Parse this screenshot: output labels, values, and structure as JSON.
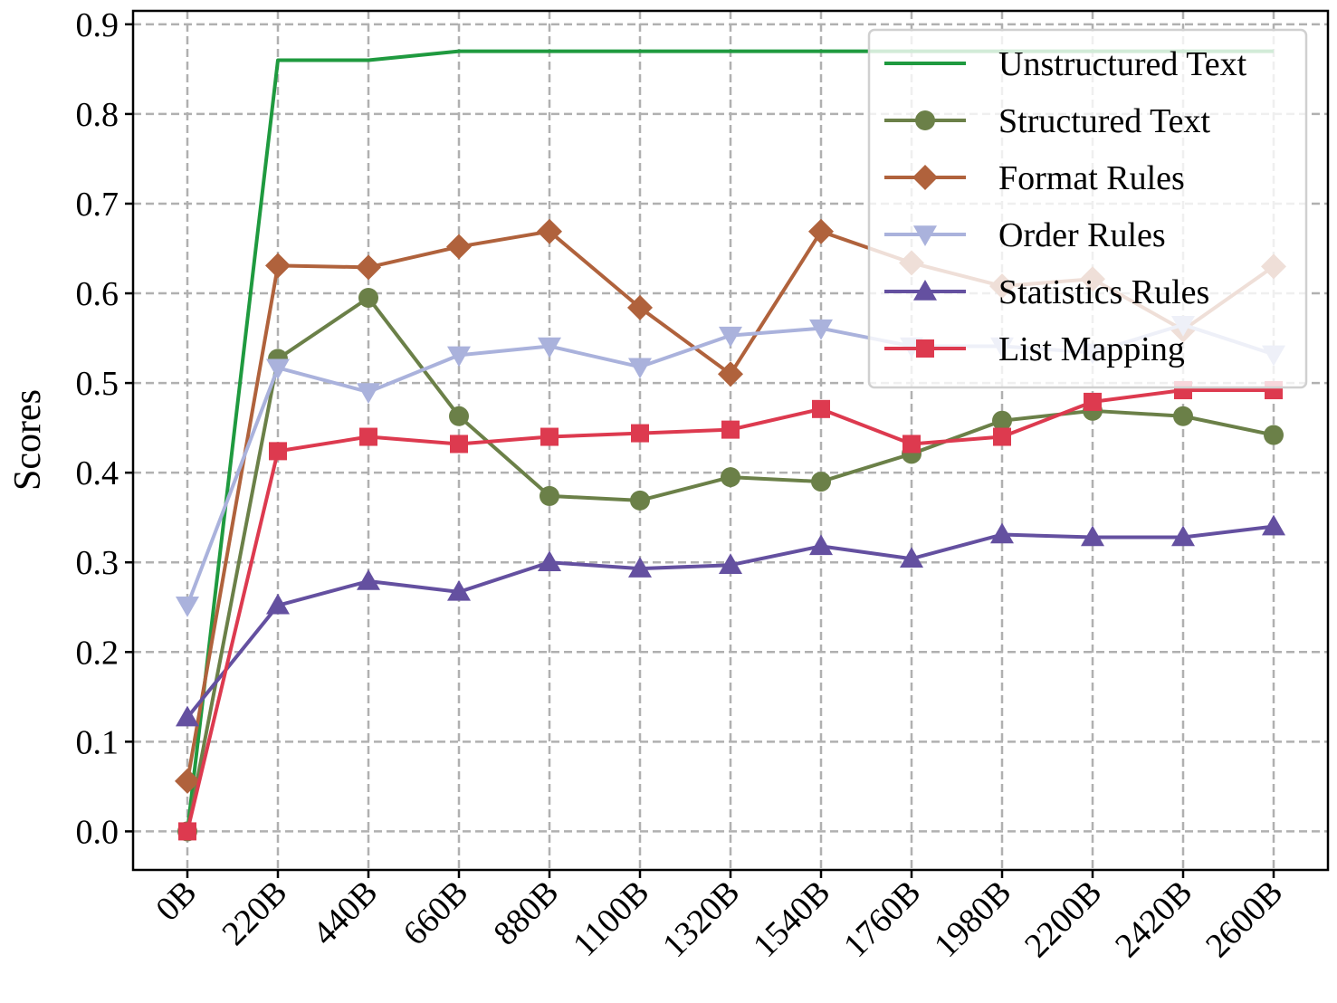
{
  "chart_data": {
    "type": "line",
    "title": "",
    "xlabel": "",
    "ylabel": "Scores",
    "categories": [
      "0B",
      "220B",
      "440B",
      "660B",
      "880B",
      "1100B",
      "1320B",
      "1540B",
      "1760B",
      "1980B",
      "2200B",
      "2420B",
      "2600B"
    ],
    "ylim": [
      -0.043,
      0.915
    ],
    "yticks": [
      0.0,
      0.1,
      0.2,
      0.3,
      0.4,
      0.5,
      0.6,
      0.7,
      0.8,
      0.9
    ],
    "ytick_labels": [
      "0.0",
      "0.1",
      "0.2",
      "0.3",
      "0.4",
      "0.5",
      "0.6",
      "0.7",
      "0.8",
      "0.9"
    ],
    "grid": true,
    "legend_position": "top-right",
    "series": [
      {
        "name": "Unstructured Text",
        "color": "#1f9a3f",
        "marker": "none",
        "values": [
          0.0,
          0.86,
          0.86,
          0.87,
          0.87,
          0.87,
          0.87,
          0.87,
          0.87,
          0.87,
          0.87,
          0.87,
          0.87
        ]
      },
      {
        "name": "Structured Text",
        "color": "#6b8048",
        "marker": "circle",
        "values": [
          0.0,
          0.527,
          0.595,
          0.463,
          0.374,
          0.369,
          0.395,
          0.39,
          0.421,
          0.458,
          0.469,
          0.463,
          0.442
        ]
      },
      {
        "name": "Format Rules",
        "color": "#b0623c",
        "marker": "diamond",
        "values": [
          0.056,
          0.631,
          0.629,
          0.652,
          0.669,
          0.584,
          0.51,
          0.669,
          0.634,
          0.608,
          0.616,
          0.559,
          0.63
        ]
      },
      {
        "name": "Order Rules",
        "color": "#aab2dc",
        "marker": "triangle-down",
        "values": [
          0.252,
          0.517,
          0.49,
          0.531,
          0.541,
          0.518,
          0.553,
          0.561,
          0.541,
          0.541,
          0.534,
          0.565,
          0.532
        ]
      },
      {
        "name": "Statistics Rules",
        "color": "#6450a0",
        "marker": "triangle-up",
        "values": [
          0.127,
          0.252,
          0.279,
          0.267,
          0.3,
          0.293,
          0.297,
          0.318,
          0.304,
          0.331,
          0.328,
          0.328,
          0.34
        ]
      },
      {
        "name": "List Mapping",
        "color": "#dd3a4f",
        "marker": "square",
        "values": [
          0.0,
          0.424,
          0.44,
          0.432,
          0.44,
          0.444,
          0.448,
          0.471,
          0.432,
          0.44,
          0.479,
          0.492,
          0.492
        ]
      }
    ]
  }
}
